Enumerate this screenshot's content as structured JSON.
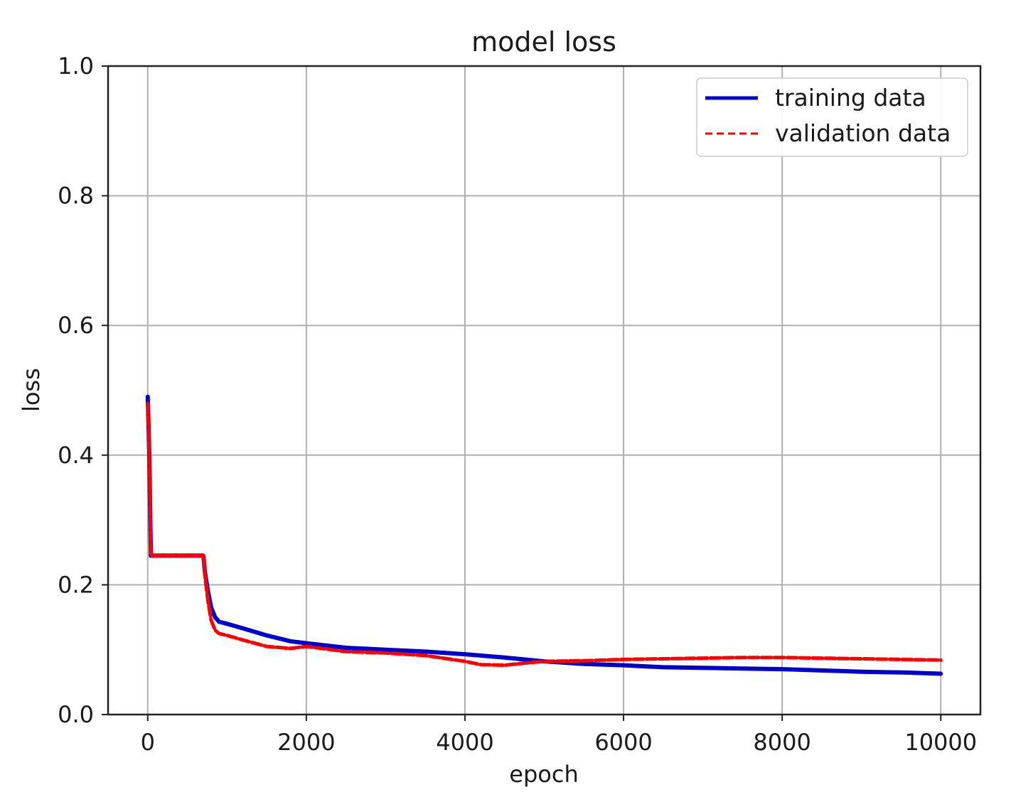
{
  "chart_data": {
    "type": "line",
    "title": "model loss",
    "xlabel": "epoch",
    "ylabel": "loss",
    "xlim": [
      -500,
      10500
    ],
    "ylim": [
      0.0,
      1.0
    ],
    "xticks": [
      0,
      2000,
      4000,
      6000,
      8000,
      10000
    ],
    "xtick_labels": [
      "0",
      "2000",
      "4000",
      "6000",
      "8000",
      "10000"
    ],
    "yticks": [
      0.0,
      0.2,
      0.4,
      0.6,
      0.8,
      1.0
    ],
    "ytick_labels": [
      "0.0",
      "0.2",
      "0.4",
      "0.6",
      "0.8",
      "1.0"
    ],
    "grid": true,
    "legend_position": "top-right",
    "series": [
      {
        "name": "training data",
        "color": "#0000cc",
        "style": "solid",
        "x": [
          0,
          20,
          40,
          700,
          710,
          720,
          760,
          800,
          850,
          900,
          1000,
          1200,
          1500,
          1800,
          2000,
          2500,
          3000,
          3500,
          4000,
          4500,
          5000,
          5500,
          6000,
          6500,
          7000,
          7500,
          8000,
          8500,
          9000,
          9500,
          10000
        ],
        "y": [
          0.49,
          0.4,
          0.245,
          0.245,
          0.235,
          0.22,
          0.19,
          0.165,
          0.15,
          0.143,
          0.14,
          0.133,
          0.122,
          0.113,
          0.11,
          0.103,
          0.1,
          0.097,
          0.093,
          0.088,
          0.082,
          0.078,
          0.076,
          0.073,
          0.072,
          0.071,
          0.07,
          0.068,
          0.066,
          0.065,
          0.063
        ]
      },
      {
        "name": "validation data",
        "color": "#ff0000",
        "style": "dashed",
        "x": [
          0,
          20,
          40,
          700,
          710,
          720,
          760,
          800,
          850,
          900,
          1000,
          1200,
          1500,
          1800,
          2000,
          2500,
          3000,
          3500,
          4000,
          4200,
          4500,
          4800,
          5000,
          5500,
          6000,
          6500,
          7000,
          7500,
          8000,
          8500,
          9000,
          9500,
          10000
        ],
        "y": [
          0.48,
          0.4,
          0.245,
          0.245,
          0.235,
          0.215,
          0.175,
          0.145,
          0.13,
          0.125,
          0.122,
          0.115,
          0.105,
          0.102,
          0.105,
          0.097,
          0.095,
          0.091,
          0.082,
          0.077,
          0.076,
          0.08,
          0.082,
          0.083,
          0.085,
          0.086,
          0.087,
          0.088,
          0.088,
          0.087,
          0.086,
          0.085,
          0.084
        ]
      }
    ]
  }
}
